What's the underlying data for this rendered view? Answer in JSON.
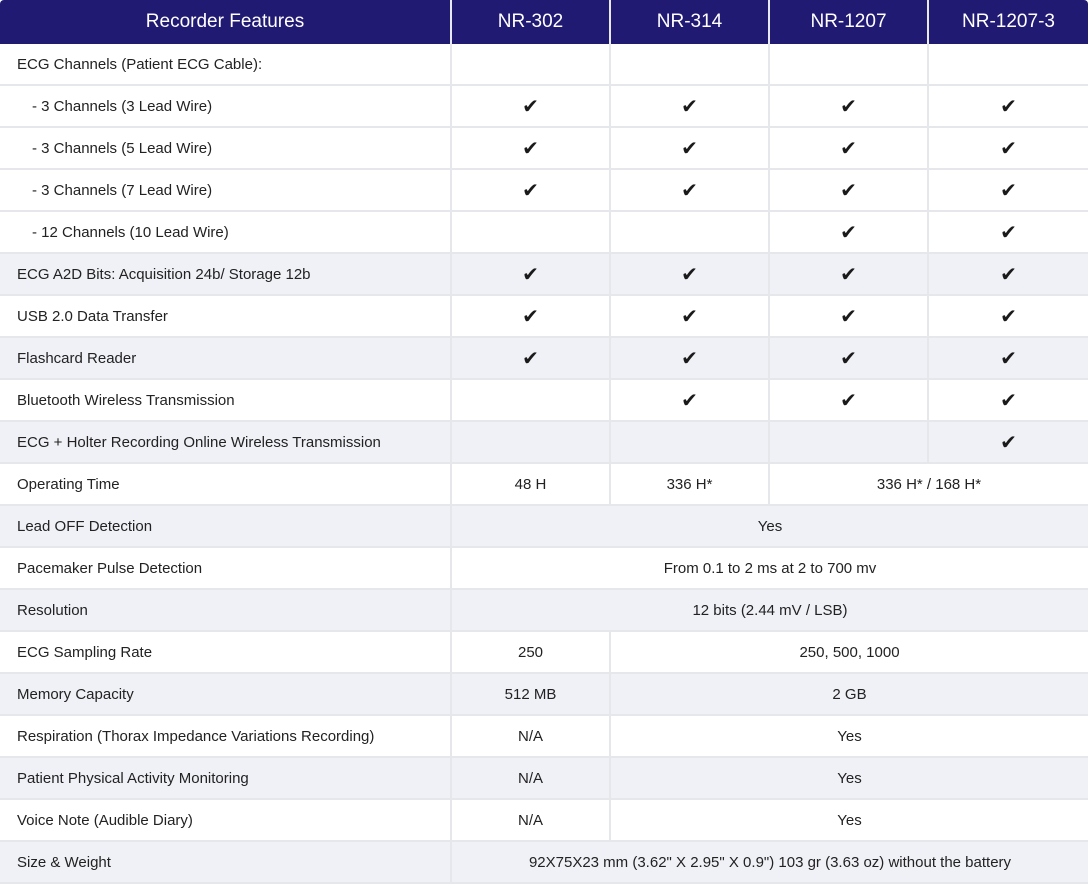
{
  "colors": {
    "header_bg": "#211a73",
    "header_text": "#ffffff",
    "row_alt": "#f0f1f6"
  },
  "header": [
    "Recorder Features",
    "NR-302",
    "NR-314",
    "NR-1207",
    "NR-1207-3"
  ],
  "check_icon": "✔",
  "rows": [
    {
      "feature": "ECG Channels (Patient ECG Cable):",
      "sub": false,
      "grey": false,
      "cells": [
        {
          "text": ""
        },
        {
          "text": ""
        },
        {
          "text": ""
        },
        {
          "text": ""
        }
      ]
    },
    {
      "feature": "- 3 Channels (3 Lead Wire)",
      "sub": true,
      "grey": false,
      "cells": [
        {
          "check": true
        },
        {
          "check": true
        },
        {
          "check": true
        },
        {
          "check": true
        }
      ]
    },
    {
      "feature": "- 3 Channels (5 Lead Wire)",
      "sub": true,
      "grey": false,
      "cells": [
        {
          "check": true
        },
        {
          "check": true
        },
        {
          "check": true
        },
        {
          "check": true
        }
      ]
    },
    {
      "feature": "- 3 Channels (7 Lead Wire)",
      "sub": true,
      "grey": false,
      "cells": [
        {
          "check": true
        },
        {
          "check": true
        },
        {
          "check": true
        },
        {
          "check": true
        }
      ]
    },
    {
      "feature": "- 12 Channels (10 Lead Wire)",
      "sub": true,
      "grey": false,
      "cells": [
        {
          "text": ""
        },
        {
          "text": ""
        },
        {
          "check": true
        },
        {
          "check": true
        }
      ]
    },
    {
      "feature": "ECG A2D Bits: Acquisition 24b/ Storage 12b",
      "sub": false,
      "grey": true,
      "cells": [
        {
          "check": true
        },
        {
          "check": true
        },
        {
          "check": true
        },
        {
          "check": true
        }
      ]
    },
    {
      "feature": "USB 2.0 Data Transfer",
      "sub": false,
      "grey": false,
      "cells": [
        {
          "check": true
        },
        {
          "check": true
        },
        {
          "check": true
        },
        {
          "check": true
        }
      ]
    },
    {
      "feature": "Flashcard Reader",
      "sub": false,
      "grey": true,
      "cells": [
        {
          "check": true
        },
        {
          "check": true
        },
        {
          "check": true
        },
        {
          "check": true
        }
      ]
    },
    {
      "feature": "Bluetooth Wireless Transmission",
      "sub": false,
      "grey": false,
      "cells": [
        {
          "text": ""
        },
        {
          "check": true
        },
        {
          "check": true
        },
        {
          "check": true
        }
      ]
    },
    {
      "feature": "ECG + Holter Recording Online Wireless Transmission",
      "sub": false,
      "grey": true,
      "cells": [
        {
          "text": ""
        },
        {
          "text": ""
        },
        {
          "text": ""
        },
        {
          "check": true
        }
      ]
    },
    {
      "feature": "Operating Time",
      "sub": false,
      "grey": false,
      "cells": [
        {
          "text": "48 H"
        },
        {
          "text": "336 H*"
        },
        {
          "text": "336 H* / 168 H*",
          "span": 2
        }
      ]
    },
    {
      "feature": "Lead OFF Detection",
      "sub": false,
      "grey": true,
      "cells": [
        {
          "text": "Yes",
          "span": 4
        }
      ]
    },
    {
      "feature": "Pacemaker Pulse Detection",
      "sub": false,
      "grey": false,
      "cells": [
        {
          "text": "From 0.1 to 2 ms at 2 to 700 mv",
          "span": 4
        }
      ]
    },
    {
      "feature": "Resolution",
      "sub": false,
      "grey": true,
      "cells": [
        {
          "text": "12 bits (2.44 mV / LSB)",
          "span": 4
        }
      ]
    },
    {
      "feature": "ECG Sampling Rate",
      "sub": false,
      "grey": false,
      "cells": [
        {
          "text": "250"
        },
        {
          "text": "250, 500, 1000",
          "span": 3
        }
      ]
    },
    {
      "feature": "Memory Capacity",
      "sub": false,
      "grey": true,
      "cells": [
        {
          "text": "512 MB"
        },
        {
          "text": "2 GB",
          "span": 3
        }
      ]
    },
    {
      "feature": "Respiration (Thorax Impedance Variations Recording)",
      "sub": false,
      "grey": false,
      "cells": [
        {
          "text": "N/A"
        },
        {
          "text": "Yes",
          "span": 3
        }
      ]
    },
    {
      "feature": "Patient Physical Activity Monitoring",
      "sub": false,
      "grey": true,
      "cells": [
        {
          "text": "N/A"
        },
        {
          "text": "Yes",
          "span": 3
        }
      ]
    },
    {
      "feature": "Voice Note (Audible Diary)",
      "sub": false,
      "grey": false,
      "cells": [
        {
          "text": "N/A"
        },
        {
          "text": "Yes",
          "span": 3
        }
      ]
    },
    {
      "feature": "Size & Weight",
      "sub": false,
      "grey": true,
      "cells": [
        {
          "text": "92X75X23 mm (3.62\" X 2.95\" X 0.9\") 103 gr (3.63 oz) without the battery",
          "span": 4
        }
      ]
    }
  ]
}
